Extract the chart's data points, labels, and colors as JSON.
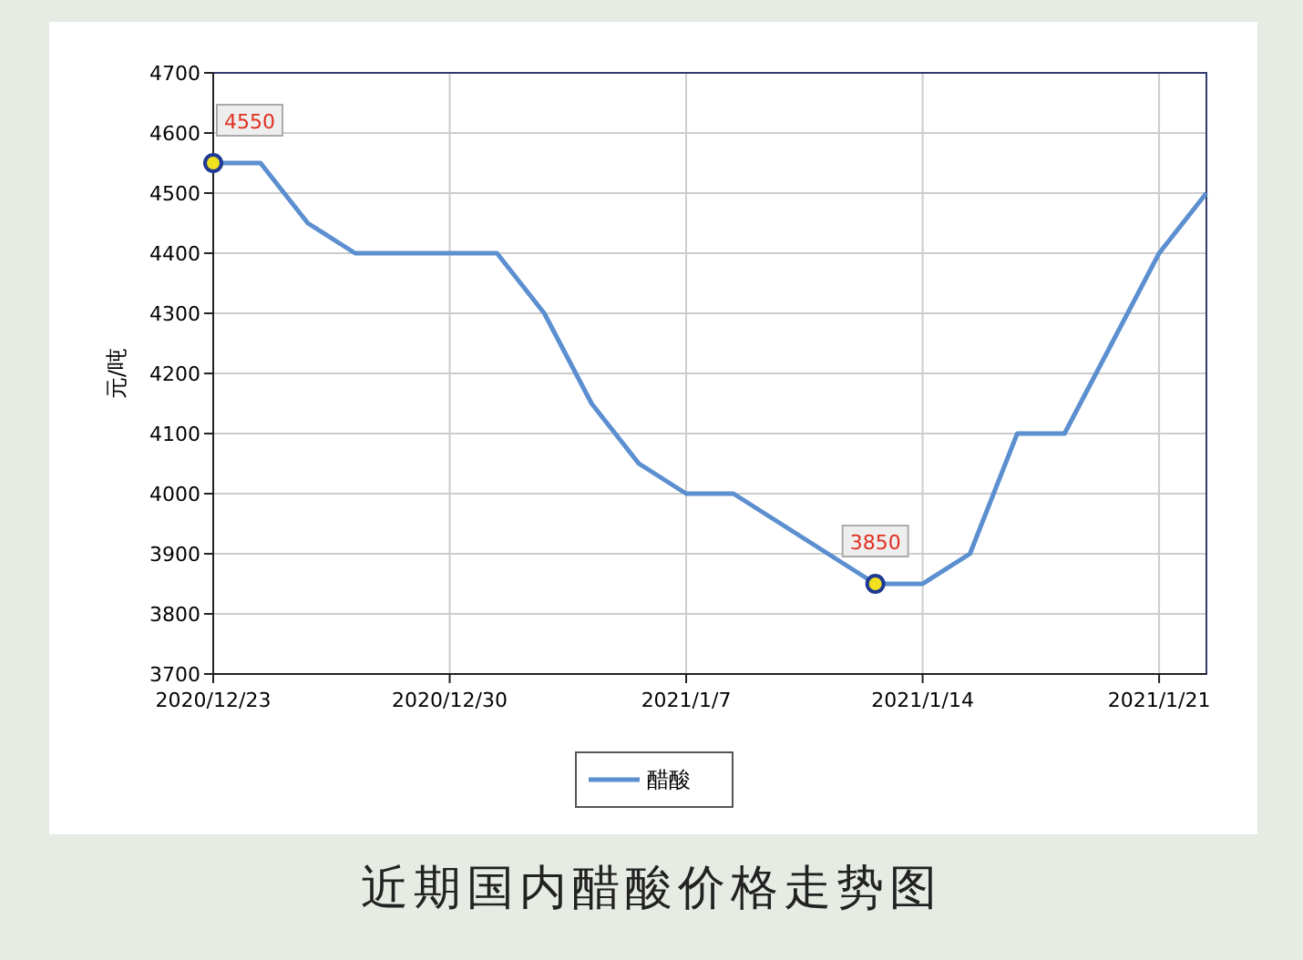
{
  "chart_data": {
    "type": "line",
    "title": "近期国内醋酸价格走势图",
    "ylabel": "元/吨",
    "categories": [
      "2020/12/23",
      null,
      null,
      null,
      null,
      "2020/12/30",
      null,
      null,
      null,
      null,
      "2021/1/7",
      null,
      null,
      null,
      null,
      "2021/1/14",
      null,
      null,
      null,
      null,
      "2021/1/21",
      null
    ],
    "series": [
      {
        "name": "醋酸",
        "color": "#5b8fd0",
        "values": [
          4550,
          4550,
          4450,
          4400,
          4400,
          4400,
          4400,
          4300,
          4150,
          4050,
          4000,
          4000,
          3950,
          3900,
          3850,
          3850,
          3900,
          4100,
          4100,
          4250,
          4400,
          4500
        ],
        "value_labels": [
          "4550",
          null,
          null,
          null,
          null,
          null,
          null,
          null,
          null,
          null,
          null,
          null,
          null,
          null,
          "3850",
          null,
          null,
          null,
          null,
          null,
          null,
          null
        ]
      }
    ],
    "ylim": [
      3700,
      4700
    ],
    "yticks": [
      3700,
      3800,
      3900,
      4000,
      4100,
      4200,
      4300,
      4400,
      4500,
      4600,
      4700
    ],
    "grid": true,
    "legend": "bottom",
    "line_style": "solid"
  }
}
